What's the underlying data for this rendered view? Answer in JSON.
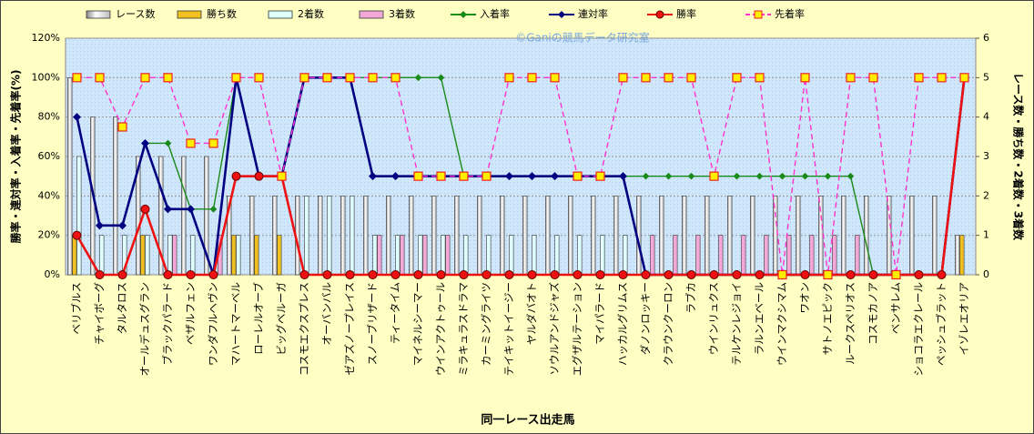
{
  "chart_data": {
    "type": "bar",
    "watermark": "©Ganiの競馬データ研究室",
    "x_label": "同一レース出走馬",
    "y_label": "勝率・連対率・入着率・先着率(%)",
    "y2_label": "レース数・勝ち数・2着数・3着数",
    "categories": [
      "ベリブルス",
      "チャイボーグ",
      "タルタロス",
      "オールデュスグラン",
      "ブラックパラード",
      "ベザルフェン",
      "ワンダフルヘヴン",
      "マハートマーベル",
      "ローレルオーブ",
      "ビッグベルーガ",
      "コスモエクスプレス",
      "オーバンバル",
      "ゼアズノープレイス",
      "スノーブリザード",
      "ティータイム",
      "マイネルシーマー",
      "ウインアクトゥール",
      "ミラキュラスドラマ",
      "カーミングライツ",
      "テイキットイージー",
      "ヤルダバオト",
      "ソウルアンドジャズ",
      "エグザルテーション",
      "マイパラード",
      "ハッカルグリムス",
      "ダノンロッキー",
      "クラウンクーロン",
      "ラブカ",
      "ウインリュクス",
      "テルケンレジョイ",
      "ラルンエベール",
      "ウインマクシマム",
      "ワオン",
      "サトノエピック",
      "ルークスペリオス",
      "コスモカノア",
      "ベンサレム",
      "ショコラエクレール",
      "ペッシュブラット",
      "イゾレエオリア"
    ],
    "ylim": [
      0,
      120
    ],
    "yticks": [
      {
        "value": 0,
        "label": "0%"
      },
      {
        "value": 20,
        "label": "20%"
      },
      {
        "value": 40,
        "label": "40%"
      },
      {
        "value": 60,
        "label": "60%"
      },
      {
        "value": 80,
        "label": "80%"
      },
      {
        "value": 100,
        "label": "100%"
      },
      {
        "value": 120,
        "label": "120%"
      }
    ],
    "y2lim": [
      0,
      6
    ],
    "y2ticks": [
      0,
      1,
      2,
      3,
      4,
      5,
      6
    ],
    "grid": true,
    "series": [
      {
        "name": "レース数",
        "type": "bar",
        "axis": "y2",
        "color": "#ffffff",
        "values": [
          5,
          4,
          4,
          3,
          3,
          3,
          3,
          2,
          2,
          2,
          2,
          2,
          2,
          2,
          2,
          2,
          2,
          2,
          2,
          2,
          2,
          2,
          2,
          2,
          2,
          2,
          2,
          2,
          2,
          2,
          2,
          2,
          2,
          2,
          2,
          2,
          2,
          2,
          2,
          1
        ]
      },
      {
        "name": "勝ち数",
        "type": "bar",
        "axis": "y2",
        "color": "#f0c020",
        "values": [
          1,
          0,
          0,
          1,
          0,
          0,
          0,
          1,
          1,
          1,
          0,
          0,
          0,
          0,
          0,
          0,
          0,
          0,
          0,
          0,
          0,
          0,
          0,
          0,
          0,
          0,
          0,
          0,
          0,
          0,
          0,
          0,
          0,
          0,
          0,
          0,
          0,
          0,
          0,
          1
        ]
      },
      {
        "name": "2着数",
        "type": "bar",
        "axis": "y2",
        "color": "#e0ffff",
        "values": [
          3,
          1,
          1,
          1,
          1,
          1,
          0,
          1,
          0,
          0,
          2,
          2,
          2,
          1,
          1,
          1,
          1,
          1,
          1,
          1,
          1,
          1,
          1,
          1,
          1,
          0,
          0,
          0,
          0,
          0,
          0,
          0,
          0,
          0,
          0,
          0,
          0,
          0,
          0,
          0
        ]
      },
      {
        "name": "3着数",
        "type": "bar",
        "axis": "y2",
        "color": "#f4a8d8",
        "values": [
          0,
          0,
          0,
          0,
          1,
          0,
          1,
          0,
          0,
          0,
          0,
          0,
          0,
          1,
          1,
          1,
          1,
          0,
          0,
          0,
          0,
          0,
          0,
          0,
          0,
          1,
          1,
          1,
          1,
          1,
          1,
          1,
          1,
          1,
          1,
          0,
          0,
          0,
          0,
          0
        ]
      },
      {
        "name": "入着率",
        "type": "line",
        "color": "#1a8a1a",
        "marker": "diamond",
        "values": [
          80,
          25,
          25,
          66.7,
          66.7,
          33.3,
          33.3,
          100,
          50,
          50,
          100,
          100,
          100,
          100,
          100,
          100,
          100,
          50,
          50,
          50,
          50,
          50,
          50,
          50,
          50,
          50,
          50,
          50,
          50,
          50,
          50,
          50,
          50,
          50,
          50,
          0,
          0,
          0,
          0,
          100
        ]
      },
      {
        "name": "連対率",
        "type": "line",
        "color": "#000080",
        "marker": "diamond",
        "values": [
          80,
          25,
          25,
          66.7,
          33.3,
          33.3,
          0,
          100,
          50,
          50,
          100,
          100,
          100,
          50,
          50,
          50,
          50,
          50,
          50,
          50,
          50,
          50,
          50,
          50,
          50,
          0,
          0,
          0,
          0,
          0,
          0,
          0,
          0,
          0,
          0,
          0,
          0,
          0,
          0,
          100
        ]
      },
      {
        "name": "勝率",
        "type": "line",
        "color": "#ee1111",
        "marker": "circle",
        "values": [
          20,
          0,
          0,
          33.3,
          0,
          0,
          0,
          50,
          50,
          50,
          0,
          0,
          0,
          0,
          0,
          0,
          0,
          0,
          0,
          0,
          0,
          0,
          0,
          0,
          0,
          0,
          0,
          0,
          0,
          0,
          0,
          0,
          0,
          0,
          0,
          0,
          0,
          0,
          0,
          100
        ]
      },
      {
        "name": "先着率",
        "type": "line",
        "color": "#ff33cc",
        "marker": "square",
        "dashed": true,
        "values": [
          100,
          100,
          75,
          100,
          100,
          66.7,
          66.7,
          100,
          100,
          50,
          100,
          100,
          100,
          100,
          100,
          50,
          50,
          50,
          50,
          100,
          100,
          100,
          50,
          50,
          100,
          100,
          100,
          100,
          50,
          100,
          100,
          0,
          100,
          0,
          100,
          100,
          0,
          100,
          100,
          100
        ]
      }
    ]
  }
}
